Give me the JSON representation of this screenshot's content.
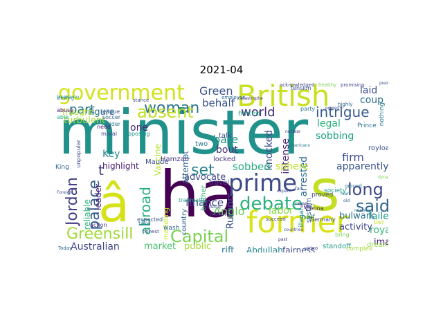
{
  "title": "2021-04",
  "words": [
    {
      "text": "minister",
      "color": "#21918c"
    },
    {
      "text": "s",
      "color": "#c2df23"
    },
    {
      "text": "â",
      "color": "#d5e21a"
    },
    {
      "text": "ha",
      "color": "#440154"
    },
    {
      "text": "British",
      "color": "#c8e020"
    },
    {
      "text": "former",
      "color": "#d8e219"
    },
    {
      "text": "government",
      "color": "#d2e21b"
    },
    {
      "text": "prime",
      "color": "#3e4a89"
    },
    {
      "text": "woman",
      "color": "#2c728e"
    },
    {
      "text": "absent",
      "color": "#c0df25"
    },
    {
      "text": "debate",
      "color": "#2ab07f"
    },
    {
      "text": "Capital",
      "color": "#7ad151"
    },
    {
      "text": "Greensill",
      "color": "#a0da39"
    },
    {
      "text": "long",
      "color": "#3e4989"
    },
    {
      "text": "said",
      "color": "#31688e"
    },
    {
      "text": "set",
      "color": "#26828e"
    },
    {
      "text": "palace",
      "color": "#355f8d"
    },
    {
      "text": "abroad",
      "color": "#29af7f"
    },
    {
      "text": "Jordan",
      "color": "#433e85"
    },
    {
      "text": "part",
      "color": "#2a788e"
    },
    {
      "text": "intrigue",
      "color": "#375b8d"
    },
    {
      "text": "world",
      "color": "#472c7a"
    },
    {
      "text": "Green",
      "color": "#3b528b"
    },
    {
      "text": "behalf",
      "color": "#3a548c"
    },
    {
      "text": "legal",
      "color": "#2db27d"
    },
    {
      "text": "laid",
      "color": "#3c4f8a"
    },
    {
      "text": "coup",
      "color": "#2e6d8e"
    },
    {
      "text": "failed",
      "color": "#1fa088"
    },
    {
      "text": "royal",
      "color": "#37b878"
    },
    {
      "text": "Australian",
      "color": "#3f4788"
    },
    {
      "text": "market",
      "color": "#4ac16d"
    },
    {
      "text": "public",
      "color": "#a2da37"
    },
    {
      "text": "finance",
      "color": "#3f4889"
    },
    {
      "text": "Anglo",
      "color": "#6ccd5a"
    },
    {
      "text": "bulwark",
      "color": "#2d708e"
    },
    {
      "text": "activity",
      "color": "#404688"
    },
    {
      "text": "image",
      "color": "#482576"
    },
    {
      "text": "apparently",
      "color": "#39558c"
    },
    {
      "text": "firm",
      "color": "#3d4e8a"
    },
    {
      "text": "knocked",
      "color": "#3e4a89"
    },
    {
      "text": "intense",
      "color": "#481f70"
    },
    {
      "text": "arrested",
      "color": "#2e6e8e"
    },
    {
      "text": "sobbing",
      "color": "#1fa187"
    },
    {
      "text": "sobbed",
      "color": "#25ac82"
    },
    {
      "text": "labor",
      "color": "#8bd646"
    },
    {
      "text": "sphere",
      "color": "#bddf26"
    },
    {
      "text": "Rumors",
      "color": "#3a548c"
    },
    {
      "text": "rift",
      "color": "#2a768e"
    },
    {
      "text": "Abdullah",
      "color": "#24878e"
    },
    {
      "text": "fairness",
      "color": "#3e4c8a"
    },
    {
      "text": "advocate",
      "color": "#3f4889"
    },
    {
      "text": "highlight",
      "color": "#481d6f"
    },
    {
      "text": "Key",
      "color": "#23888e"
    },
    {
      "text": "one",
      "color": "#482878"
    },
    {
      "text": "Vaccine",
      "color": "#b5de2b"
    },
    {
      "text": "attempt",
      "color": "#33638d"
    },
    {
      "text": "bare",
      "color": "#21918c"
    },
    {
      "text": "bout",
      "color": "#46327e"
    },
    {
      "text": "t",
      "color": "#443983"
    },
    {
      "text": "turbulent",
      "color": "#a8db34"
    },
    {
      "text": "figure",
      "color": "#2c738e"
    },
    {
      "text": "fraught",
      "color": "#addc30"
    },
    {
      "text": "leader",
      "color": "#482173"
    },
    {
      "text": "reliable",
      "color": "#30b47c"
    },
    {
      "text": "Hamzah",
      "color": "#453781"
    },
    {
      "text": "Maude",
      "color": "#3d4d8a"
    },
    {
      "text": "locked",
      "color": "#46337e"
    },
    {
      "text": "hinted",
      "color": "#22a785"
    },
    {
      "text": "two",
      "color": "#2a778e"
    },
    {
      "text": "talk",
      "color": "#3e4989"
    },
    {
      "text": "brother",
      "color": "#2fb47c"
    },
    {
      "text": "country",
      "color": "#34618d"
    },
    {
      "text": "travel",
      "color": "#3f4788"
    },
    {
      "text": "meddling",
      "color": "#c5e021"
    },
    {
      "text": "wash",
      "color": "#2f6c8e"
    },
    {
      "text": "royloatts",
      "color": "#3b528b"
    },
    {
      "text": "dreaming",
      "color": "#8fd744"
    },
    {
      "text": "system",
      "color": "#31688e"
    },
    {
      "text": "illegal",
      "color": "#218e8d"
    },
    {
      "text": "society",
      "color": "#1f9a8a"
    },
    {
      "text": "proved",
      "color": "#3e4a89"
    },
    {
      "text": "standoff",
      "color": "#1e9c89"
    },
    {
      "text": "complex",
      "color": "#a5db36"
    },
    {
      "text": "half",
      "color": "#25858e"
    },
    {
      "text": "light",
      "color": "#46327e"
    },
    {
      "text": "nothing",
      "color": "#2a788e"
    },
    {
      "text": "tier",
      "color": "#c0df25"
    },
    {
      "text": "Prince",
      "color": "#2d708e"
    },
    {
      "text": "King",
      "color": "#33638d"
    },
    {
      "text": "expected",
      "color": "#39558c"
    },
    {
      "text": "wider",
      "color": "#2a788e"
    },
    {
      "text": "moral",
      "color": "#3f4889"
    },
    {
      "text": "need",
      "color": "#481f70"
    },
    {
      "text": "abuse",
      "color": "#471063"
    },
    {
      "text": "able",
      "color": "#26ad81"
    },
    {
      "text": "league",
      "color": "#3b528b"
    },
    {
      "text": "soccer",
      "color": "#34608d"
    },
    {
      "text": "opposing",
      "color": "#21918c"
    },
    {
      "text": "unpopular",
      "color": "#3f4889"
    },
    {
      "text": "traumatic",
      "color": "#1fa088"
    },
    {
      "text": "action",
      "color": "#46327e"
    },
    {
      "text": "honest",
      "color": "#3e4a89"
    },
    {
      "text": "take",
      "color": "#2e6f8e"
    },
    {
      "text": "tension",
      "color": "#3b528b"
    },
    {
      "text": "party",
      "color": "#2a788e"
    },
    {
      "text": "Vienna",
      "color": "#482475"
    },
    {
      "text": "Germany",
      "color": "#3e4a89"
    },
    {
      "text": "bring",
      "color": "#7ad151"
    },
    {
      "text": "video",
      "color": "#3f4788"
    },
    {
      "text": "Today",
      "color": "#31688e"
    },
    {
      "text": "within",
      "color": "#46327e"
    },
    {
      "text": "using",
      "color": "#3e4c8a"
    },
    {
      "text": "fan",
      "color": "#3a548c"
    },
    {
      "text": "ground",
      "color": "#2c728e"
    },
    {
      "text": "succeed",
      "color": "#3f4889"
    },
    {
      "text": "acknowledged",
      "color": "#3e4989"
    },
    {
      "text": "employee",
      "color": "#31688e"
    },
    {
      "text": "catastrophe",
      "color": "#46327e"
    },
    {
      "text": "stance",
      "color": "#3e4a89"
    },
    {
      "text": "stickling",
      "color": "#2a788e"
    },
    {
      "text": "healthy",
      "color": "#7ad151"
    },
    {
      "text": "promising",
      "color": "#3f4889"
    },
    {
      "text": "pledge",
      "color": "#3b528b"
    },
    {
      "text": "powerful",
      "color": "#3e4a89"
    },
    {
      "text": "highly",
      "color": "#31688e"
    },
    {
      "text": "nuclear",
      "color": "#46327e"
    },
    {
      "text": "Americans",
      "color": "#2a788e"
    },
    {
      "text": "expert",
      "color": "#3e4c8a"
    },
    {
      "text": "cause",
      "color": "#3f4788"
    },
    {
      "text": "mistake",
      "color": "#2c728e"
    },
    {
      "text": "Foreign",
      "color": "#3b528b"
    },
    {
      "text": "breakaway",
      "color": "#21918c"
    },
    {
      "text": "past",
      "color": "#46327e"
    },
    {
      "text": "countries",
      "color": "#3e4989"
    },
    {
      "text": "old",
      "color": "#34608d"
    },
    {
      "text": "fear",
      "color": "#2a788e"
    },
    {
      "text": "dynastic",
      "color": "#7ad151"
    }
  ]
}
